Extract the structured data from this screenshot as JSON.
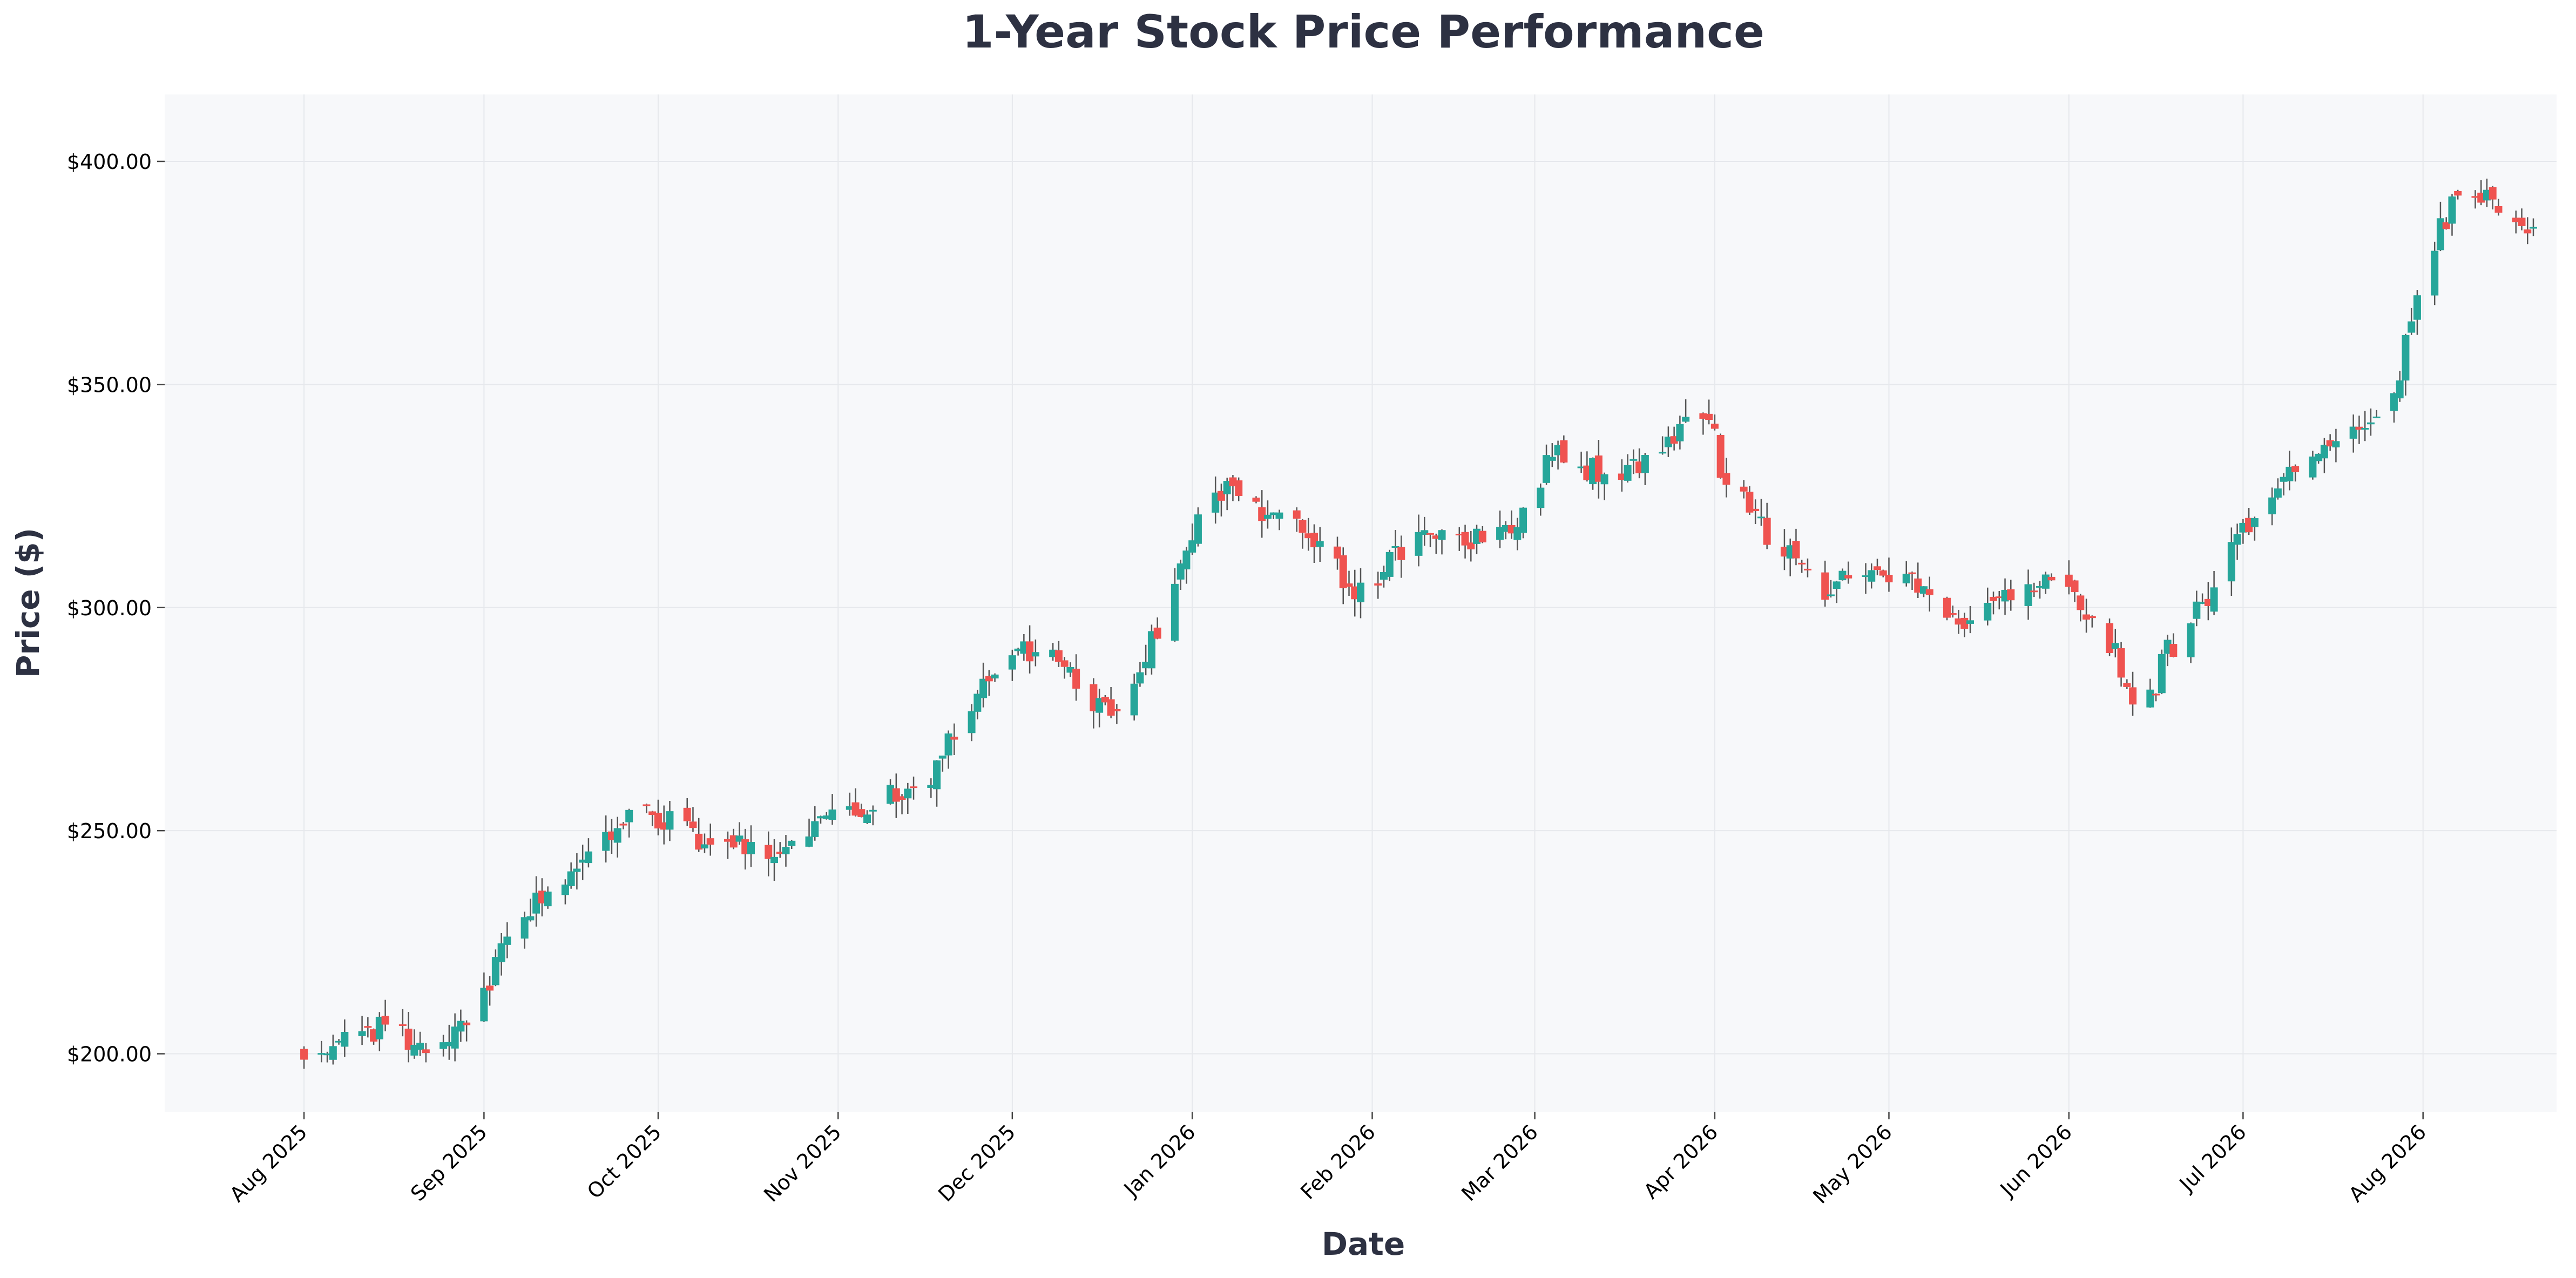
{
  "chart_data": {
    "type": "candlestick",
    "title": "1-Year Stock Price Performance",
    "xlabel": "Date",
    "ylabel": "Price ($)",
    "ylim": [
      187,
      415
    ],
    "y_ticks": [
      200,
      250,
      300,
      350,
      400
    ],
    "y_tick_labels": [
      "$200.00",
      "$250.00",
      "$300.00",
      "$350.00",
      "$400.00"
    ],
    "x_ticks": [
      "2025-08-01",
      "2025-09-01",
      "2025-10-01",
      "2025-11-01",
      "2025-12-01",
      "2026-01-01",
      "2026-02-01",
      "2026-03-01",
      "2026-04-01",
      "2026-05-01",
      "2026-06-01",
      "2026-07-01",
      "2026-08-01"
    ],
    "x_tick_labels": [
      "Aug 2025",
      "Sep 2025",
      "Oct 2025",
      "Nov 2025",
      "Dec 2025",
      "Jan 2026",
      "Feb 2026",
      "Mar 2026",
      "Apr 2026",
      "May 2026",
      "Jun 2026",
      "Jul 2026",
      "Aug 2026"
    ],
    "xlim": [
      "2025-07-08",
      "2026-08-24"
    ],
    "grid": true,
    "colors": {
      "up": "#26a69a",
      "down": "#ef5350",
      "wick": "#555555",
      "plot_background": "#f7f8fa",
      "grid": "#e6e8ec",
      "title": "#2d3142"
    },
    "anchors": [
      [
        "2025-08-01",
        200
      ],
      [
        "2025-08-14",
        206
      ],
      [
        "2025-08-22",
        201
      ],
      [
        "2025-09-01",
        212
      ],
      [
        "2025-09-05",
        228
      ],
      [
        "2025-09-18",
        243
      ],
      [
        "2025-09-28",
        255
      ],
      [
        "2025-10-03",
        252
      ],
      [
        "2025-10-10",
        247
      ],
      [
        "2025-10-22",
        245
      ],
      [
        "2025-11-01",
        253
      ],
      [
        "2025-11-08",
        257
      ],
      [
        "2025-11-17",
        263
      ],
      [
        "2025-11-24",
        278
      ],
      [
        "2025-12-01",
        290
      ],
      [
        "2025-12-09",
        288
      ],
      [
        "2025-12-18",
        275
      ],
      [
        "2025-12-28",
        300
      ],
      [
        "2026-01-01",
        315
      ],
      [
        "2026-01-05",
        327
      ],
      [
        "2026-01-14",
        320
      ],
      [
        "2026-01-23",
        315
      ],
      [
        "2026-01-29",
        303
      ],
      [
        "2026-02-08",
        315
      ],
      [
        "2026-02-17",
        315
      ],
      [
        "2026-02-26",
        320
      ],
      [
        "2026-03-05",
        336
      ],
      [
        "2026-03-15",
        327
      ],
      [
        "2026-03-24",
        338
      ],
      [
        "2026-03-31",
        345
      ],
      [
        "2026-04-02",
        330
      ],
      [
        "2026-04-10",
        317
      ],
      [
        "2026-04-20",
        303
      ],
      [
        "2026-04-28",
        310
      ],
      [
        "2026-05-08",
        303
      ],
      [
        "2026-05-16",
        296
      ],
      [
        "2026-05-24",
        306
      ],
      [
        "2026-06-01",
        305
      ],
      [
        "2026-06-09",
        290
      ],
      [
        "2026-06-13",
        273
      ],
      [
        "2026-06-18",
        290
      ],
      [
        "2026-06-25",
        303
      ],
      [
        "2026-07-01",
        318
      ],
      [
        "2026-07-09",
        332
      ],
      [
        "2026-07-18",
        337
      ],
      [
        "2026-07-27",
        347
      ],
      [
        "2026-08-01",
        378
      ],
      [
        "2026-08-08",
        395
      ],
      [
        "2026-08-15",
        390
      ],
      [
        "2026-08-20",
        384
      ]
    ]
  }
}
